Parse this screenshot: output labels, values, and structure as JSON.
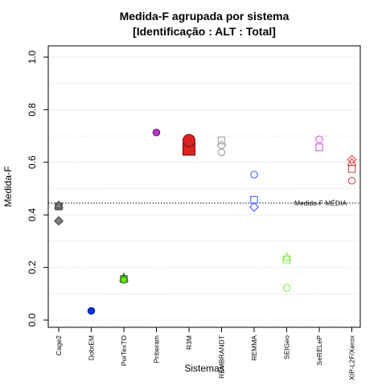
{
  "chart_data": {
    "type": "scatter",
    "title": "Medida-F agrupada por sistema",
    "subtitle": "[Identificação : ALT : Total]",
    "xlabel": "Sistemas",
    "ylabel": "Medida-F",
    "ylim": [
      0,
      1
    ],
    "yticks": [
      "0.0",
      "0.2",
      "0.4",
      "0.6",
      "0.8",
      "1.0"
    ],
    "grid": "horizontal dotted",
    "categories": [
      "Cage2",
      "DobrEM",
      "PorTexTO",
      "Priberam",
      "R3M",
      "REMBRANDT",
      "REMMA",
      "SEIGeo",
      "SeRELeP",
      "XIP-L2F/Xerox"
    ],
    "reference_line": {
      "label": "Medida-F MÉDIA",
      "value": 0.445
    },
    "points": [
      {
        "category": "Cage2",
        "shape": "circle",
        "value": 0.435,
        "size": 1.0,
        "fill": "#808080",
        "stroke": "#404040"
      },
      {
        "category": "Cage2",
        "shape": "square",
        "value": 0.432,
        "size": 1.0,
        "fill": "#808080",
        "stroke": "#404040"
      },
      {
        "category": "Cage2",
        "shape": "triangle",
        "value": 0.437,
        "size": 1.0,
        "fill": "#808080",
        "stroke": "#404040"
      },
      {
        "category": "Cage2",
        "shape": "diamond",
        "value": 0.377,
        "size": 1.0,
        "fill": "#808080",
        "stroke": "#404040"
      },
      {
        "category": "DobrEM",
        "shape": "circle",
        "value": 0.035,
        "size": 1.0,
        "fill": "#0033dd",
        "stroke": "#001a80"
      },
      {
        "category": "PorTexTO",
        "shape": "triangle",
        "value": 0.162,
        "size": 1.0,
        "fill": "#66dd22",
        "stroke": "#2a6610"
      },
      {
        "category": "PorTexTO",
        "shape": "square",
        "value": 0.156,
        "size": 1.0,
        "fill": "#66dd22",
        "stroke": "#2a6610"
      },
      {
        "category": "PorTexTO",
        "shape": "circle",
        "value": 0.153,
        "size": 1.0,
        "fill": "#66dd22",
        "stroke": "#2a6610"
      },
      {
        "category": "Priberam",
        "shape": "circle",
        "value": 0.713,
        "size": 1.0,
        "fill": "#bb33cc",
        "stroke": "#551166"
      },
      {
        "category": "R3M",
        "shape": "square",
        "value": 0.65,
        "size": 1.8,
        "fill": "#dd2222",
        "stroke": "#661111"
      },
      {
        "category": "R3M",
        "shape": "circle",
        "value": 0.683,
        "size": 1.8,
        "fill": "#dd2222",
        "stroke": "#661111"
      },
      {
        "category": "REMBRANDT",
        "shape": "square",
        "value": 0.683,
        "size": 1.0,
        "fill": "none",
        "stroke": "#999999"
      },
      {
        "category": "REMBRANDT",
        "shape": "diamond",
        "value": 0.664,
        "size": 1.0,
        "fill": "none",
        "stroke": "#999999"
      },
      {
        "category": "REMBRANDT",
        "shape": "circle",
        "value": 0.638,
        "size": 1.0,
        "fill": "none",
        "stroke": "#999999"
      },
      {
        "category": "REMMA",
        "shape": "circle",
        "value": 0.553,
        "size": 1.0,
        "fill": "none",
        "stroke": "#3355ee"
      },
      {
        "category": "REMMA",
        "shape": "square",
        "value": 0.457,
        "size": 1.0,
        "fill": "none",
        "stroke": "#3355ee"
      },
      {
        "category": "REMMA",
        "shape": "diamond",
        "value": 0.43,
        "size": 1.0,
        "fill": "none",
        "stroke": "#3355ee"
      },
      {
        "category": "SEIGeo",
        "shape": "triangle",
        "value": 0.24,
        "size": 1.0,
        "fill": "none",
        "stroke": "#77ee33"
      },
      {
        "category": "SEIGeo",
        "shape": "square",
        "value": 0.23,
        "size": 1.0,
        "fill": "none",
        "stroke": "#77ee33"
      },
      {
        "category": "SEIGeo",
        "shape": "circle",
        "value": 0.122,
        "size": 1.0,
        "fill": "none",
        "stroke": "#77ee33"
      },
      {
        "category": "SeRELeP",
        "shape": "circle",
        "value": 0.687,
        "size": 1.0,
        "fill": "none",
        "stroke": "#cc44dd"
      },
      {
        "category": "SeRELeP",
        "shape": "square",
        "value": 0.657,
        "size": 1.0,
        "fill": "none",
        "stroke": "#cc44dd"
      },
      {
        "category": "XIP-L2F/Xerox",
        "shape": "diamond",
        "value": 0.61,
        "size": 1.0,
        "fill": "none",
        "stroke": "#dd3333"
      },
      {
        "category": "XIP-L2F/Xerox",
        "shape": "triangle",
        "value": 0.6,
        "size": 1.0,
        "fill": "none",
        "stroke": "#dd3333"
      },
      {
        "category": "XIP-L2F/Xerox",
        "shape": "square",
        "value": 0.575,
        "size": 1.0,
        "fill": "none",
        "stroke": "#dd3333"
      },
      {
        "category": "XIP-L2F/Xerox",
        "shape": "circle",
        "value": 0.53,
        "size": 1.0,
        "fill": "none",
        "stroke": "#dd3333"
      }
    ]
  }
}
